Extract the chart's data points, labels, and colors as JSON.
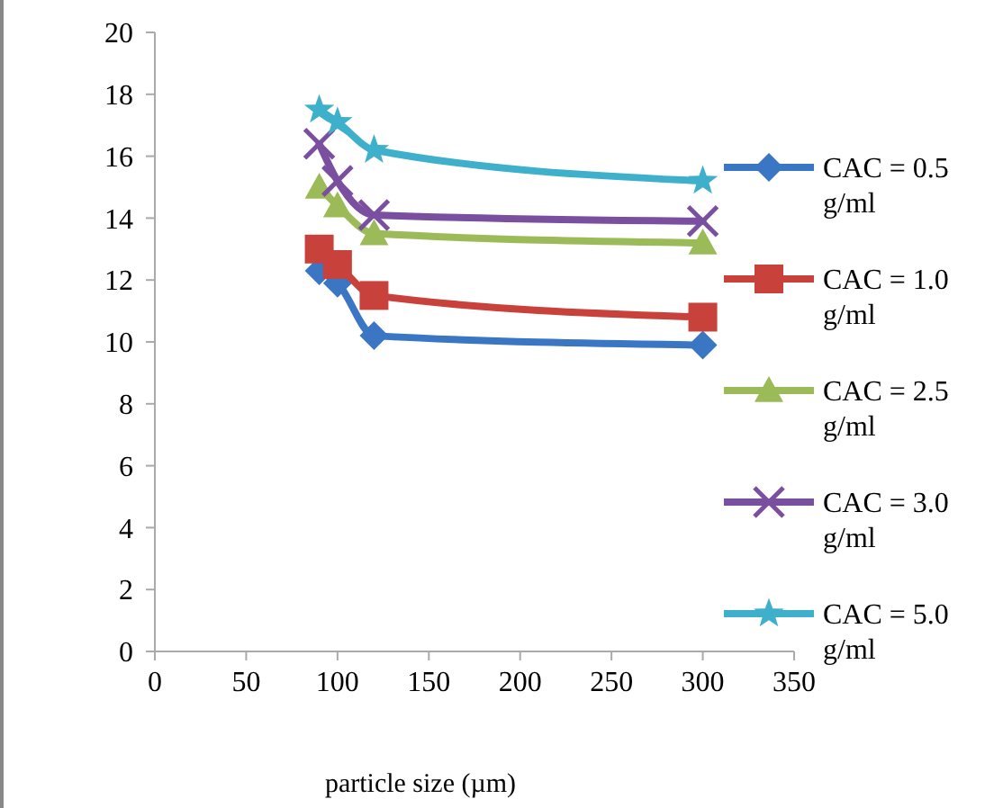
{
  "chart_data": {
    "type": "line",
    "xlabel": "particle size (µm)",
    "x": [
      90,
      100,
      120,
      300
    ],
    "xlim": [
      0,
      350
    ],
    "xticks": [
      0,
      50,
      100,
      150,
      200,
      250,
      300,
      350
    ],
    "ylim": [
      0,
      20
    ],
    "yticks": [
      0,
      2,
      4,
      6,
      8,
      10,
      12,
      14,
      16,
      18,
      20
    ],
    "grid": false,
    "legend": "right",
    "series": [
      {
        "name": "CAC = 0.5 g/ml",
        "color": "#3b76c4",
        "marker": "diamond",
        "values": [
          12.3,
          11.9,
          10.2,
          9.9
        ]
      },
      {
        "name": "CAC = 1.0 g/ml",
        "color": "#c8413b",
        "marker": "square",
        "values": [
          13.0,
          12.5,
          11.5,
          10.8
        ]
      },
      {
        "name": "CAC = 2.5 g/ml",
        "color": "#9bbb59",
        "marker": "triangle",
        "values": [
          15.0,
          14.4,
          13.5,
          13.2
        ]
      },
      {
        "name": "CAC = 3.0 g/ml",
        "color": "#7b4fa0",
        "marker": "cross",
        "values": [
          16.4,
          15.2,
          14.1,
          13.9
        ]
      },
      {
        "name": "CAC = 5.0 g/ml",
        "color": "#3fb0cc",
        "marker": "star",
        "values": [
          17.5,
          17.1,
          16.2,
          15.2
        ]
      }
    ]
  }
}
